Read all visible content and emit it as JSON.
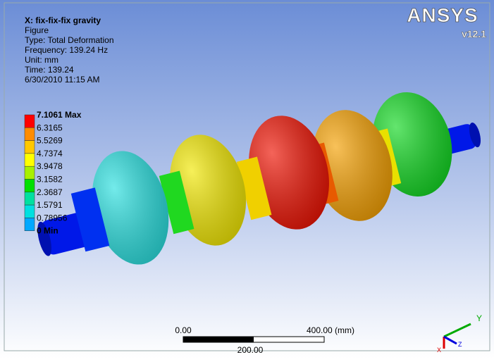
{
  "header": {
    "title": "X: fix-fix-fix gravity",
    "lines": [
      "Figure",
      "Type: Total Deformation",
      "Frequency: 139.24 Hz",
      "Unit: mm",
      "Time: 139.24",
      "6/30/2010 11:15 AM"
    ]
  },
  "logo": {
    "name": "ANSYS",
    "version": "v12.1"
  },
  "legend": {
    "labels": [
      "7.1061 Max",
      "6.3165",
      "5.5269",
      "4.7374",
      "3.9478",
      "3.1582",
      "2.3687",
      "1.5791",
      "0.78956",
      "0 Min"
    ],
    "colors": [
      "#ff0000",
      "#ff8c00",
      "#ffc800",
      "#ffff00",
      "#a8f000",
      "#00e000",
      "#00e0a0",
      "#00e0e0",
      "#00a8ff",
      "#0000ff"
    ]
  },
  "scale": {
    "start": "0.00",
    "end": "400.00 (mm)",
    "middle": "200.00"
  },
  "triad": {
    "y": "Y",
    "x": "X",
    "z": "Z"
  }
}
